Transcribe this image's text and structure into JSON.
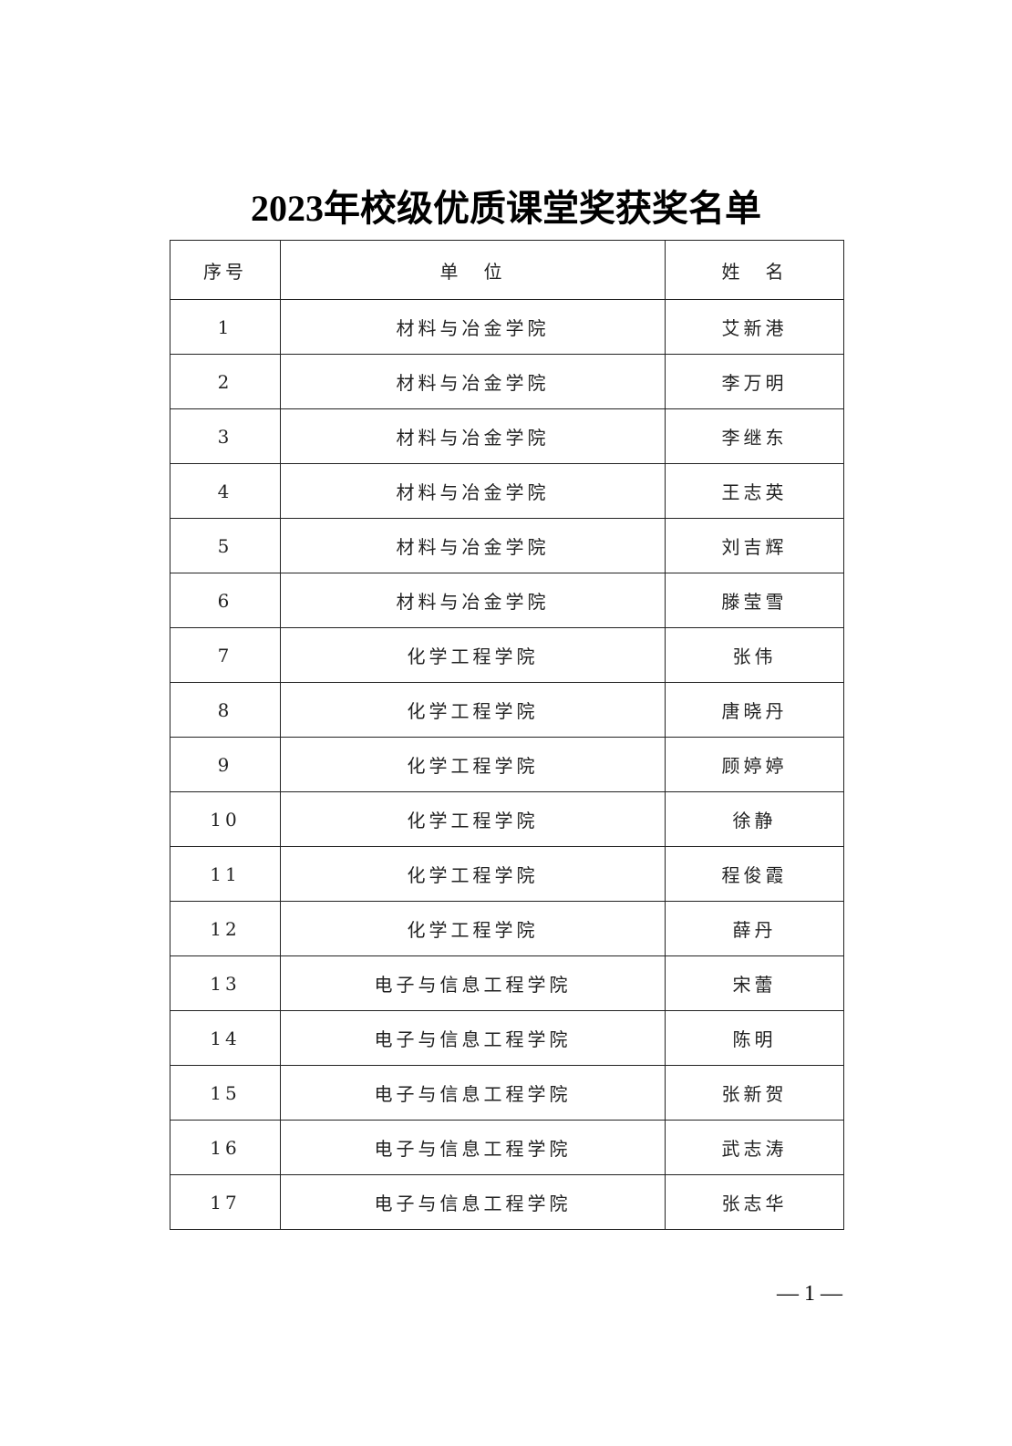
{
  "title": "2023年校级优质课堂奖获奖名单",
  "table": {
    "headers": [
      "序号",
      "单　位",
      "姓　名"
    ],
    "rows": [
      [
        "1",
        "材料与冶金学院",
        "艾新港"
      ],
      [
        "2",
        "材料与冶金学院",
        "李万明"
      ],
      [
        "3",
        "材料与冶金学院",
        "李继东"
      ],
      [
        "4",
        "材料与冶金学院",
        "王志英"
      ],
      [
        "5",
        "材料与冶金学院",
        "刘吉辉"
      ],
      [
        "6",
        "材料与冶金学院",
        "滕莹雪"
      ],
      [
        "7",
        "化学工程学院",
        "张伟"
      ],
      [
        "8",
        "化学工程学院",
        "唐晓丹"
      ],
      [
        "9",
        "化学工程学院",
        "顾婷婷"
      ],
      [
        "10",
        "化学工程学院",
        "徐静"
      ],
      [
        "11",
        "化学工程学院",
        "程俊霞"
      ],
      [
        "12",
        "化学工程学院",
        "薛丹"
      ],
      [
        "13",
        "电子与信息工程学院",
        "宋蕾"
      ],
      [
        "14",
        "电子与信息工程学院",
        "陈明"
      ],
      [
        "15",
        "电子与信息工程学院",
        "张新贺"
      ],
      [
        "16",
        "电子与信息工程学院",
        "武志涛"
      ],
      [
        "17",
        "电子与信息工程学院",
        "张志华"
      ]
    ]
  },
  "page_number": "— 1 —"
}
